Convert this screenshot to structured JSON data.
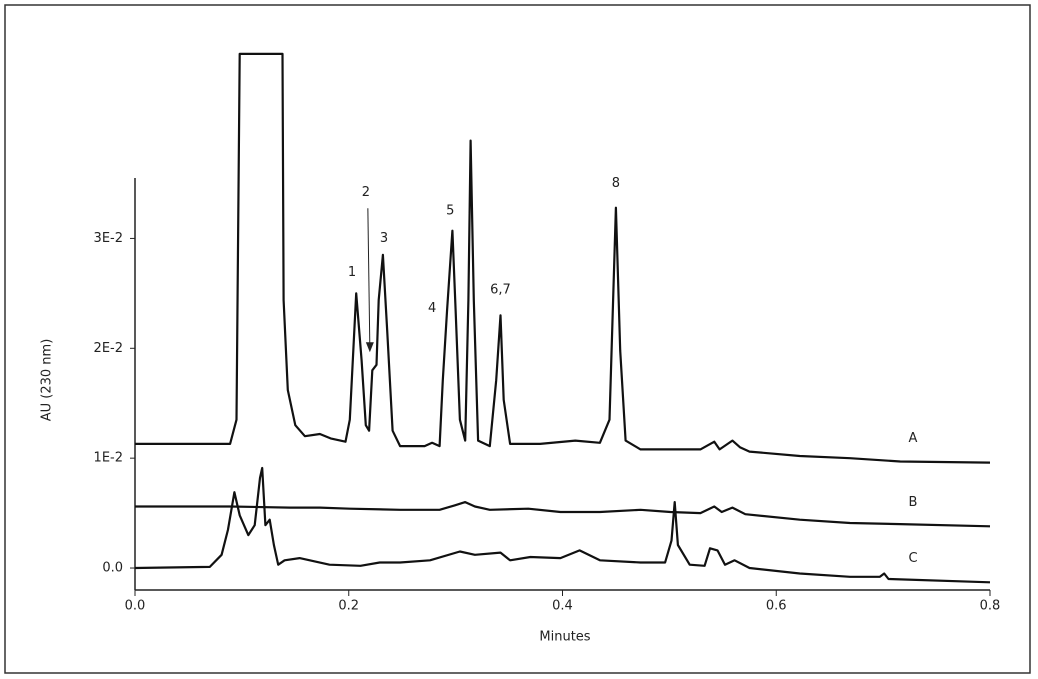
{
  "chart_data": {
    "type": "line",
    "xlabel": "Minutes",
    "ylabel": "AU (230 nm)",
    "xlim": [
      0,
      0.8
    ],
    "ylim": [
      -0.002,
      0.0355
    ],
    "xticks": [
      {
        "value": 0,
        "label": "0.0"
      },
      0.2,
      0.4,
      0.6,
      0.8
    ],
    "yticks": [
      {
        "value": 0,
        "label": "0.0"
      },
      {
        "value": 0.01,
        "label": "1E-2"
      },
      {
        "value": 0.02,
        "label": "2E-2"
      },
      {
        "value": 0.03,
        "label": "3E-2"
      }
    ],
    "grid": false,
    "series": [
      {
        "name": "A",
        "color": "#111111",
        "x": [
          0,
          0.089,
          0.095,
          0.098,
          0.138,
          0.139,
          0.143,
          0.15,
          0.159,
          0.173,
          0.183,
          0.197,
          0.201,
          0.207,
          0.212,
          0.216,
          0.219,
          0.222,
          0.226,
          0.228,
          0.232,
          0.236,
          0.241,
          0.248,
          0.271,
          0.278,
          0.285,
          0.288,
          0.292,
          0.297,
          0.3,
          0.304,
          0.309,
          0.312,
          0.314,
          0.317,
          0.321,
          0.332,
          0.338,
          0.342,
          0.345,
          0.351,
          0.379,
          0.412,
          0.435,
          0.444,
          0.45,
          0.454,
          0.459,
          0.473,
          0.529,
          0.542,
          0.547,
          0.559,
          0.566,
          0.575,
          0.622,
          0.669,
          0.716,
          0.8
        ],
        "values": [
          0.0113,
          0.0113,
          0.0135,
          0.0468,
          0.0468,
          0.0244,
          0.0162,
          0.013,
          0.012,
          0.0122,
          0.0118,
          0.0115,
          0.0135,
          0.025,
          0.0189,
          0.013,
          0.0125,
          0.018,
          0.0185,
          0.0244,
          0.0285,
          0.0216,
          0.0125,
          0.0111,
          0.0111,
          0.0114,
          0.0111,
          0.0171,
          0.0235,
          0.0307,
          0.0235,
          0.0135,
          0.0116,
          0.0244,
          0.0389,
          0.0244,
          0.0116,
          0.0111,
          0.0171,
          0.023,
          0.0153,
          0.0113,
          0.0113,
          0.0116,
          0.0114,
          0.0135,
          0.0328,
          0.0198,
          0.0116,
          0.0108,
          0.0108,
          0.0115,
          0.0108,
          0.0116,
          0.011,
          0.0106,
          0.0102,
          0.01,
          0.0097,
          0.0096
        ]
      },
      {
        "name": "B",
        "color": "#111111",
        "x": [
          0,
          0.089,
          0.145,
          0.173,
          0.201,
          0.248,
          0.285,
          0.299,
          0.309,
          0.318,
          0.332,
          0.368,
          0.398,
          0.435,
          0.473,
          0.501,
          0.529,
          0.542,
          0.549,
          0.559,
          0.571,
          0.622,
          0.669,
          0.716,
          0.8
        ],
        "values": [
          0.0056,
          0.0056,
          0.0055,
          0.0055,
          0.0054,
          0.0053,
          0.0053,
          0.0057,
          0.006,
          0.0056,
          0.0053,
          0.0054,
          0.0051,
          0.0051,
          0.0053,
          0.0051,
          0.005,
          0.0056,
          0.0051,
          0.0055,
          0.0049,
          0.0044,
          0.0041,
          0.004,
          0.0038
        ]
      },
      {
        "name": "C",
        "color": "#111111",
        "x": [
          0,
          0.07,
          0.081,
          0.087,
          0.093,
          0.098,
          0.106,
          0.112,
          0.117,
          0.119,
          0.122,
          0.126,
          0.13,
          0.134,
          0.14,
          0.154,
          0.182,
          0.211,
          0.229,
          0.248,
          0.276,
          0.304,
          0.318,
          0.342,
          0.351,
          0.37,
          0.398,
          0.416,
          0.435,
          0.473,
          0.496,
          0.502,
          0.505,
          0.508,
          0.519,
          0.533,
          0.538,
          0.545,
          0.552,
          0.561,
          0.575,
          0.622,
          0.669,
          0.697,
          0.701,
          0.705,
          0.8
        ],
        "values": [
          0,
          0.0001,
          0.0012,
          0.0035,
          0.0069,
          0.0048,
          0.003,
          0.0039,
          0.0082,
          0.0091,
          0.0039,
          0.0044,
          0.0021,
          0.0003,
          0.0007,
          0.0009,
          0.0003,
          0.0002,
          0.0005,
          0.0005,
          0.0007,
          0.0015,
          0.0012,
          0.0014,
          0.0007,
          0.001,
          0.0009,
          0.0016,
          0.0007,
          0.0005,
          0.0005,
          0.0025,
          0.006,
          0.0021,
          0.0003,
          0.0002,
          0.0018,
          0.0016,
          0.0003,
          0.0007,
          0,
          -0.0005,
          -0.0008,
          -0.0008,
          -0.0005,
          -0.001,
          -0.0013
        ]
      }
    ],
    "annotations": [
      {
        "text": "1",
        "x": 0.203,
        "y": 0.0269
      },
      {
        "text": "2",
        "x": 0.216,
        "y": 0.0342
      },
      {
        "text": "3",
        "x": 0.233,
        "y": 0.03
      },
      {
        "text": "4",
        "x": 0.278,
        "y": 0.0236
      },
      {
        "text": "5",
        "x": 0.295,
        "y": 0.0325
      },
      {
        "text": "6,7",
        "x": 0.342,
        "y": 0.0253
      },
      {
        "text": "8",
        "x": 0.45,
        "y": 0.035
      }
    ]
  }
}
